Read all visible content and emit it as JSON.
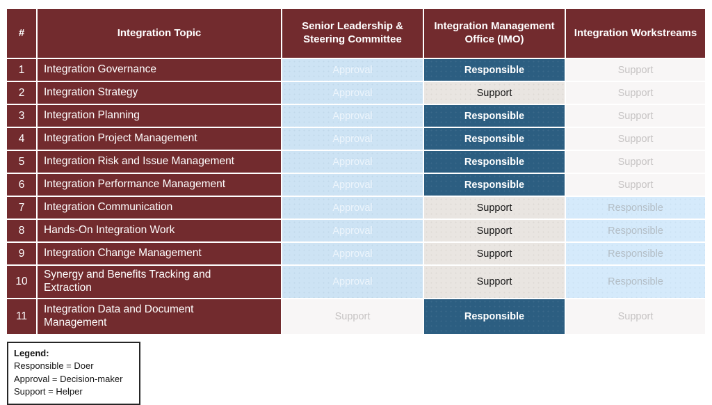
{
  "table": {
    "columns": [
      "#",
      "Integration Topic",
      "Senior Leadership & Steering Committee",
      "Integration Management Office (IMO)",
      "Integration Workstreams"
    ],
    "rows": [
      {
        "num": "1",
        "topic": "Integration Governance",
        "cells": [
          {
            "label": "Approval",
            "style": "approval dots"
          },
          {
            "label": "Responsible",
            "style": "responsible"
          },
          {
            "label": "Support",
            "style": "support-faint"
          }
        ]
      },
      {
        "num": "2",
        "topic": "Integration Strategy",
        "cells": [
          {
            "label": "Approval",
            "style": "approval dots"
          },
          {
            "label": "Support",
            "style": "support-black"
          },
          {
            "label": "Support",
            "style": "support-faint"
          }
        ]
      },
      {
        "num": "3",
        "topic": "Integration Planning",
        "cells": [
          {
            "label": "Approval",
            "style": "approval dots"
          },
          {
            "label": "Responsible",
            "style": "responsible"
          },
          {
            "label": "Support",
            "style": "support-faint"
          }
        ]
      },
      {
        "num": "4",
        "topic": "Integration Project Management",
        "cells": [
          {
            "label": "Approval",
            "style": "approval dots"
          },
          {
            "label": "Responsible",
            "style": "responsible"
          },
          {
            "label": "Support",
            "style": "support-faint"
          }
        ]
      },
      {
        "num": "5",
        "topic": "Integration Risk and Issue Management",
        "cells": [
          {
            "label": "Approval",
            "style": "approval dots"
          },
          {
            "label": "Responsible",
            "style": "responsible"
          },
          {
            "label": "Support",
            "style": "support-faint"
          }
        ]
      },
      {
        "num": "6",
        "topic": "Integration Performance Management",
        "cells": [
          {
            "label": "Approval",
            "style": "approval dots"
          },
          {
            "label": "Responsible",
            "style": "responsible"
          },
          {
            "label": "Support",
            "style": "support-faint"
          }
        ]
      },
      {
        "num": "7",
        "topic": "Integration Communication",
        "cells": [
          {
            "label": "Approval",
            "style": "approval dots"
          },
          {
            "label": "Support",
            "style": "support-black"
          },
          {
            "label": "Responsible",
            "style": "responsible-faint"
          }
        ]
      },
      {
        "num": "8",
        "topic": "Hands-On Integration Work",
        "cells": [
          {
            "label": "Approval",
            "style": "approval dots"
          },
          {
            "label": "Support",
            "style": "support-black"
          },
          {
            "label": "Responsible",
            "style": "responsible-faint"
          }
        ]
      },
      {
        "num": "9",
        "topic": "Integration Change Management",
        "cells": [
          {
            "label": "Approval",
            "style": "approval dots"
          },
          {
            "label": "Support",
            "style": "support-black"
          },
          {
            "label": "Responsible",
            "style": "responsible-faint"
          }
        ]
      },
      {
        "num": "10",
        "topic": "Synergy and Benefits Tracking and Extraction",
        "cells": [
          {
            "label": "Approval",
            "style": "approval dots"
          },
          {
            "label": "Support",
            "style": "support-black"
          },
          {
            "label": "Responsible",
            "style": "responsible-faint"
          }
        ]
      },
      {
        "num": "11",
        "topic": "Integration Data and Document Management",
        "cells": [
          {
            "label": "Support",
            "style": "support-faint"
          },
          {
            "label": "Responsible",
            "style": "responsible"
          },
          {
            "label": "Support",
            "style": "support-faint"
          }
        ]
      }
    ]
  },
  "legend": {
    "title": "Legend:",
    "items": [
      "Responsible = Doer",
      "Approval = Decision-maker",
      "Support = Helper"
    ]
  },
  "colors": {
    "maroon": "#722b2e",
    "dark_blue": "#2c5e81",
    "light_blue": "#cde3f4",
    "lighter_blue": "#d5eafb",
    "warm_gray": "#e9e5e1",
    "faint_gray": "#f8f6f6"
  }
}
